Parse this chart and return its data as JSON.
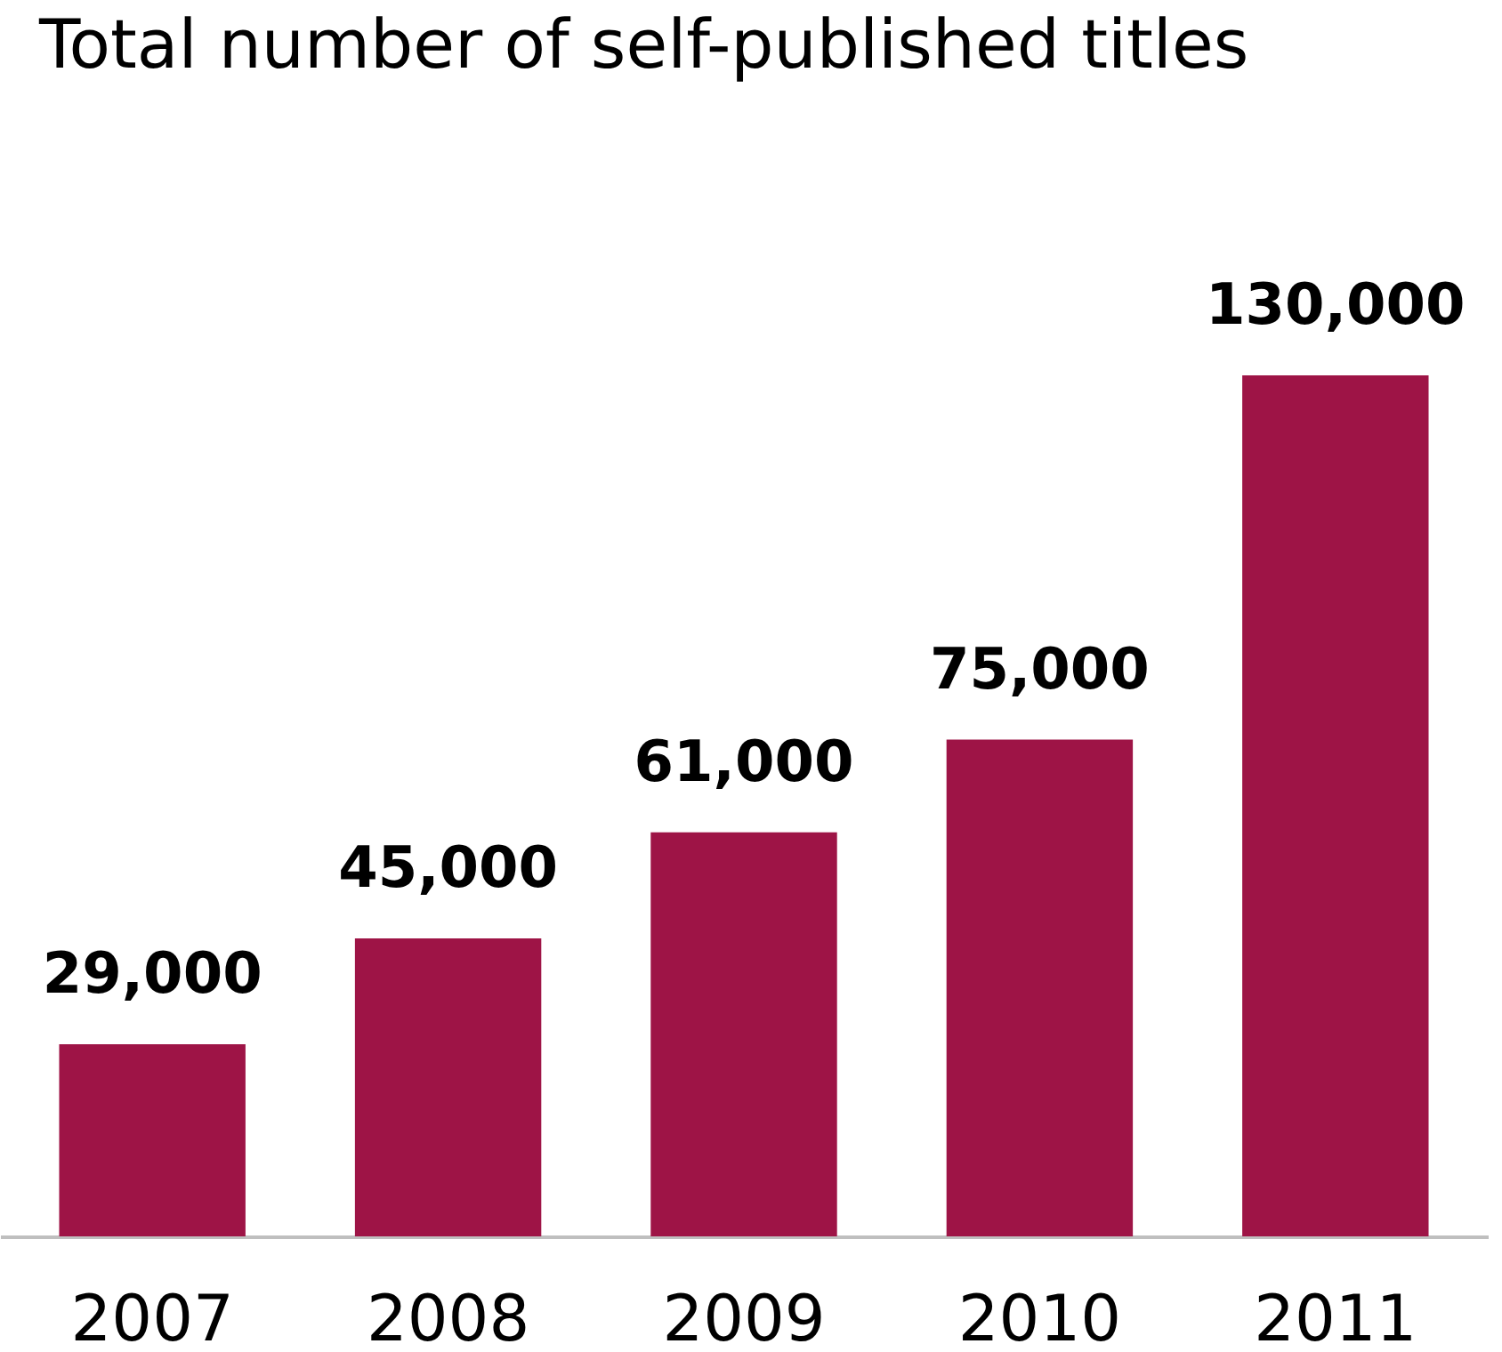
{
  "chart_data": {
    "type": "bar",
    "title": "Total number of self-published titles",
    "categories": [
      "2007",
      "2008",
      "2009",
      "2010",
      "2011"
    ],
    "values": [
      29000,
      45000,
      61000,
      75000,
      130000
    ],
    "value_labels": [
      "29,000",
      "45,000",
      "61,000",
      "75,000",
      "130,000"
    ],
    "color": "#9e1446",
    "grid": false
  }
}
